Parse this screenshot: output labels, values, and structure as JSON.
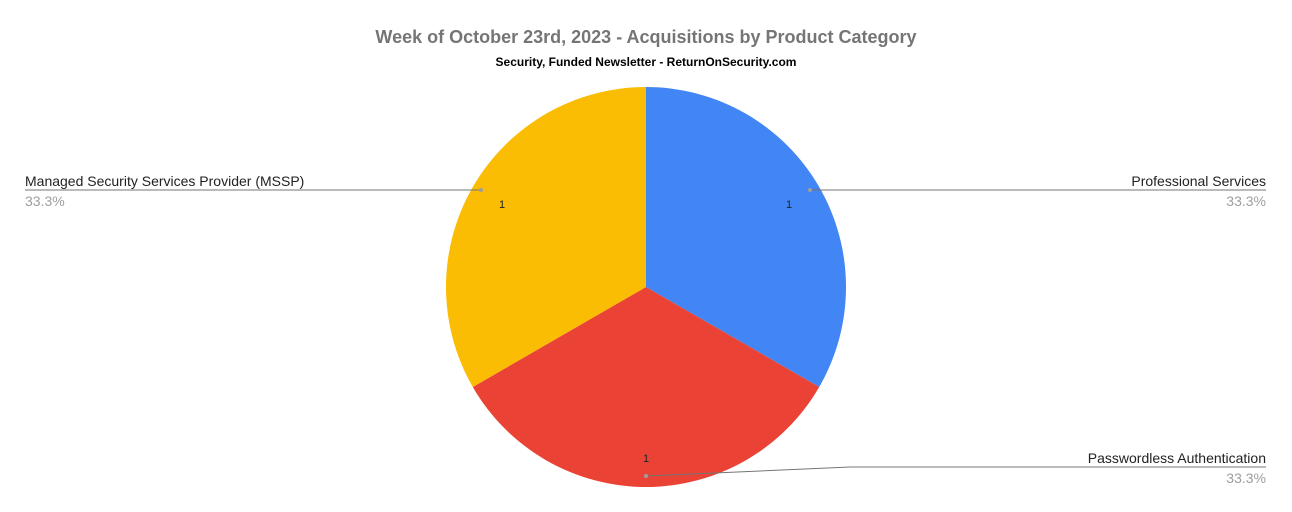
{
  "chart_data": {
    "type": "pie",
    "title": "Week of October 23rd, 2023 - Acquisitions by Product Category",
    "subtitle": "Security, Funded Newsletter - ReturnOnSecurity.com",
    "slices": [
      {
        "label": "Professional Services",
        "value": 1,
        "percent": "33.3%",
        "color": "#4285f4"
      },
      {
        "label": "Passwordless Authentication",
        "value": 1,
        "percent": "33.3%",
        "color": "#ea4335"
      },
      {
        "label": "Managed Security Services Provider (MSSP)",
        "value": 1,
        "percent": "33.3%",
        "color": "#fbbc04"
      }
    ],
    "start_angle": "top",
    "direction": "clockwise",
    "legend": "labeled leader lines"
  }
}
